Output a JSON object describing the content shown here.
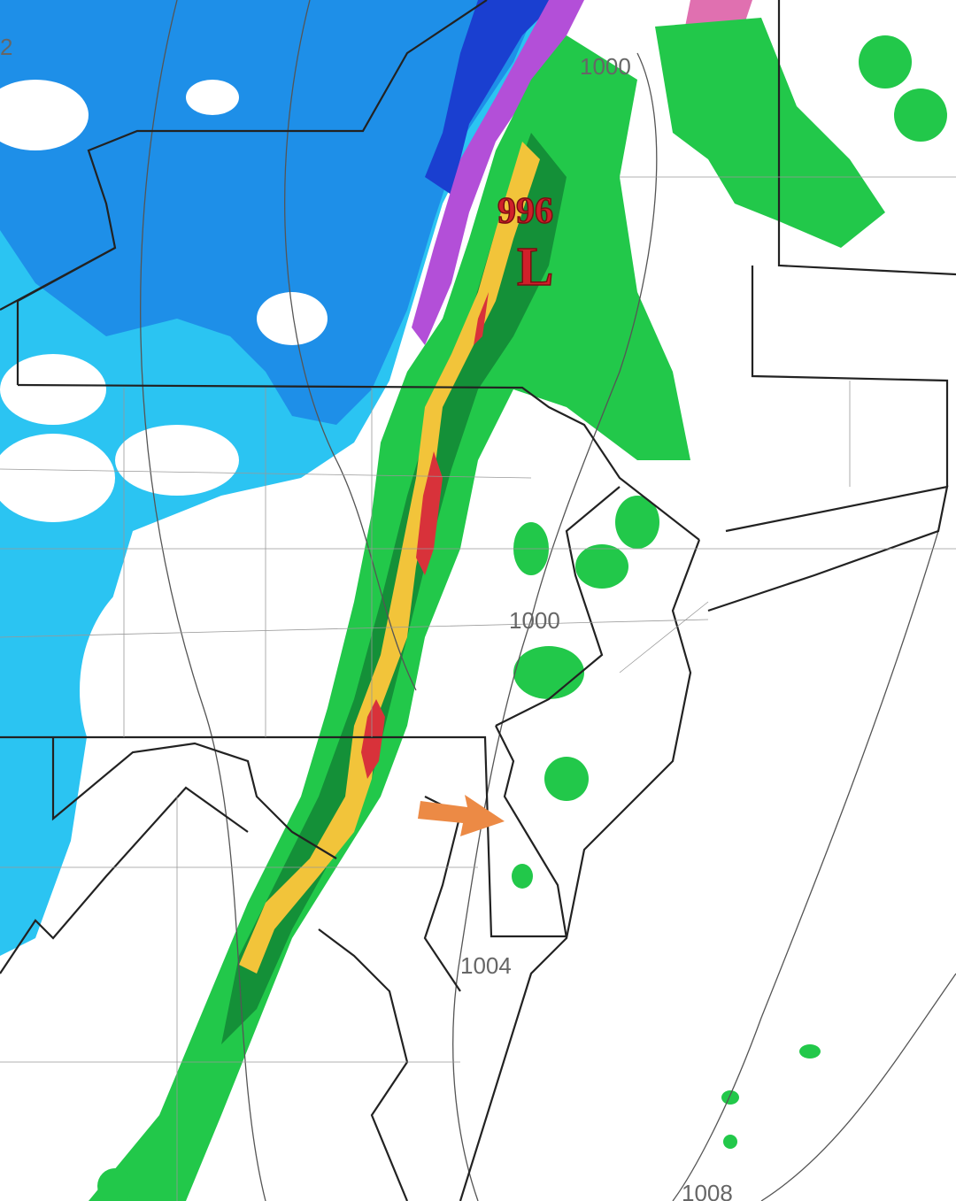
{
  "map": {
    "low": {
      "symbol": "L",
      "pressure": "996"
    },
    "isobar_labels": [
      "1000",
      "1000",
      "1004",
      "1008",
      "2"
    ],
    "annotation": {
      "type": "arrow",
      "color": "#ec8a45"
    },
    "precip_colors": {
      "snow_heavy": "#1a3fd0",
      "snow_moderate": "#1e8fe8",
      "snow_light": "#27c3f2",
      "mix": "#b34fd8",
      "mix_light": "#e070b0",
      "rain_light": "#22c84a",
      "rain_moderate": "#149038",
      "rain_heavy": "#f2c43a",
      "rain_extreme": "#d8323a"
    }
  }
}
